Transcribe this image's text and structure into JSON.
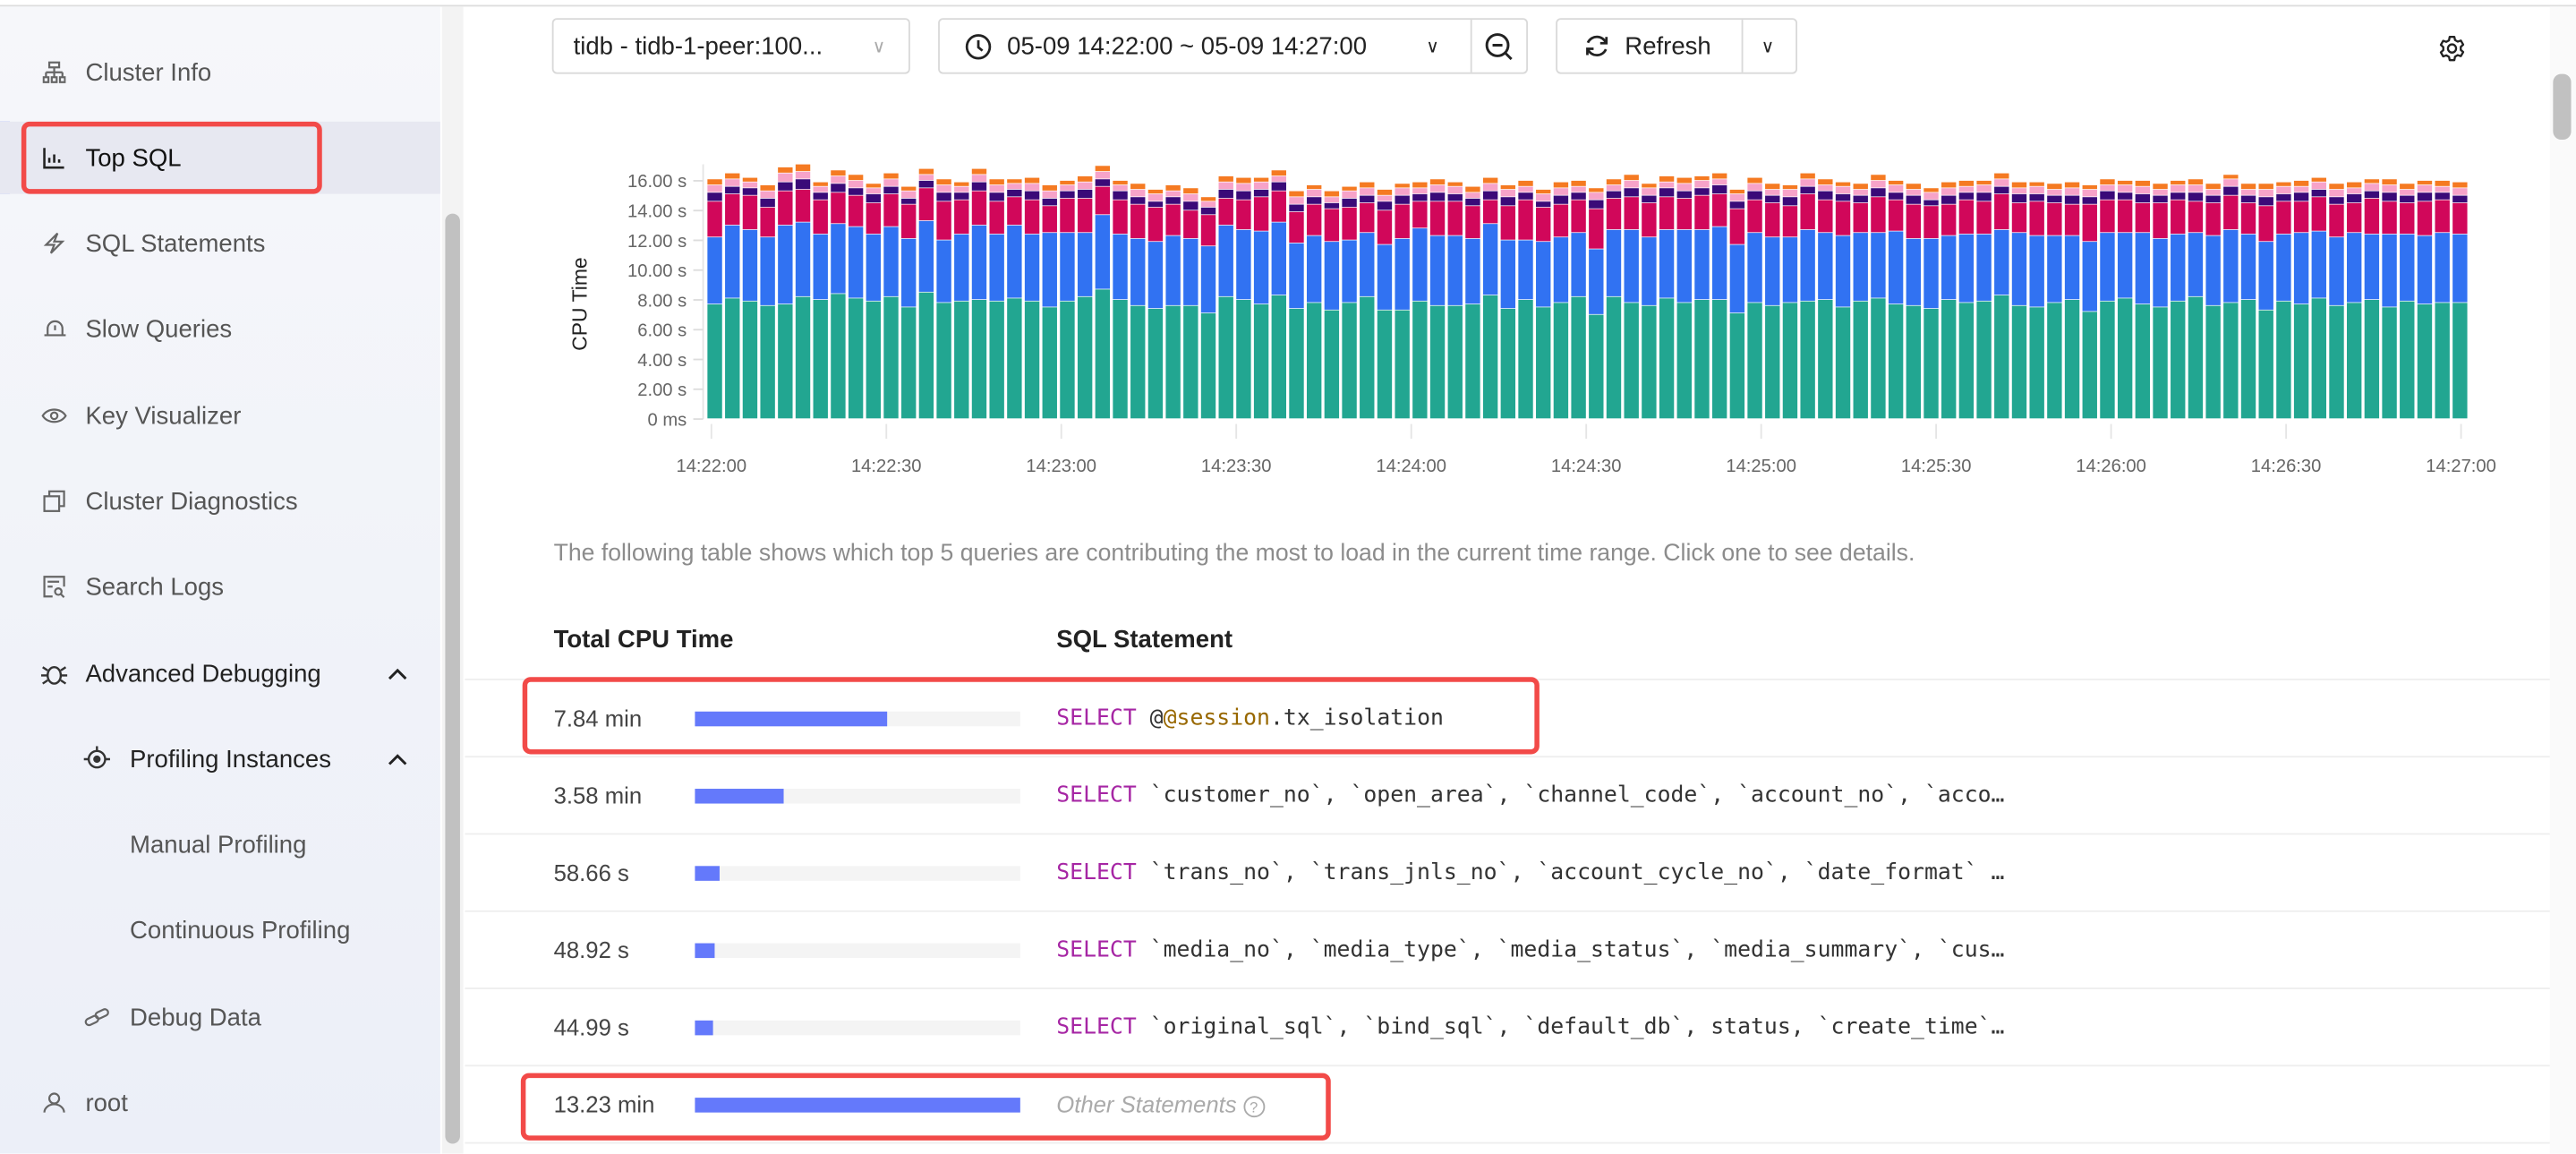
{
  "sidebar": {
    "items": [
      {
        "label": "Cluster Info",
        "icon": "cluster-icon"
      },
      {
        "label": "Top SQL",
        "icon": "bar-chart-icon",
        "active": true
      },
      {
        "label": "SQL Statements",
        "icon": "lightning-icon"
      },
      {
        "label": "Slow Queries",
        "icon": "alarm-icon"
      },
      {
        "label": "Key Visualizer",
        "icon": "eye-icon"
      },
      {
        "label": "Cluster Diagnostics",
        "icon": "diagnostics-icon"
      },
      {
        "label": "Search Logs",
        "icon": "search-logs-icon"
      },
      {
        "label": "Advanced Debugging",
        "icon": "bug-icon",
        "expanded": true
      },
      {
        "label": "Profiling Instances",
        "icon": "target-icon",
        "expanded": true
      },
      {
        "label": "Manual Profiling"
      },
      {
        "label": "Continuous Profiling"
      },
      {
        "label": "Debug Data",
        "icon": "link-icon"
      },
      {
        "label": "root",
        "icon": "user-icon"
      }
    ]
  },
  "toolbar": {
    "instance": "tidb - tidb-1-peer:100...",
    "time_range": "05-09 14:22:00 ~ 05-09 14:27:00",
    "refresh": "Refresh"
  },
  "chart_data": {
    "type": "bar",
    "stacked": true,
    "ylabel": "CPU Time",
    "ylim": [
      0,
      17.5
    ],
    "yticks": [
      "0 ms",
      "2.00 s",
      "4.00 s",
      "6.00 s",
      "8.00 s",
      "10.00 s",
      "12.00 s",
      "14.00 s",
      "16.00 s"
    ],
    "xticks": [
      "14:22:00",
      "14:22:30",
      "14:23:00",
      "14:23:30",
      "14:24:00",
      "14:24:30",
      "14:25:00",
      "14:25:30",
      "14:26:00",
      "14:26:30",
      "14:27:00"
    ],
    "grid": false,
    "series": [
      {
        "color": "#22a691",
        "values": [
          7.7,
          8.1,
          7.9,
          7.6,
          7.7,
          8.2,
          8.0,
          8.4,
          8.1,
          7.9,
          8.2,
          7.5,
          8.5,
          7.8,
          7.9,
          8.0,
          7.9,
          8.1,
          7.9,
          7.5,
          7.9,
          8.2,
          8.7,
          8.0,
          7.6,
          7.4,
          7.6,
          7.6,
          7.1,
          8.2,
          8.0,
          7.7,
          8.3,
          7.4,
          7.8,
          7.3,
          7.8,
          8.2,
          7.3,
          7.3,
          7.9,
          7.6,
          7.6,
          7.7,
          8.3,
          7.4,
          8.0,
          7.5,
          7.8,
          8.2,
          7.0,
          8.2,
          7.8,
          7.6,
          8.1,
          7.8,
          8.0,
          8.0,
          7.1,
          7.8,
          7.6,
          7.8,
          7.9,
          8.0,
          7.5,
          7.9,
          8.1,
          7.7,
          7.6,
          7.4,
          8.0,
          7.8,
          7.9,
          8.3,
          7.6,
          7.5,
          7.8,
          8.0,
          7.2,
          7.9,
          8.1,
          7.7,
          7.5,
          7.9,
          8.2,
          7.6,
          7.8,
          8.0,
          7.3,
          7.9,
          7.7,
          8.1,
          7.6,
          7.8,
          8.0,
          7.5,
          7.9,
          7.7,
          7.8,
          7.8
        ]
      },
      {
        "color": "#3172f2",
        "values": [
          4.5,
          4.9,
          4.8,
          4.6,
          5.3,
          5.0,
          4.4,
          4.7,
          4.8,
          4.5,
          4.7,
          4.6,
          4.8,
          4.2,
          4.5,
          5.0,
          4.5,
          4.9,
          4.5,
          5.0,
          4.6,
          4.3,
          5.0,
          4.4,
          4.5,
          4.5,
          4.7,
          4.5,
          4.5,
          4.8,
          4.7,
          4.9,
          4.9,
          4.4,
          4.5,
          4.6,
          4.2,
          4.3,
          4.4,
          4.8,
          4.9,
          4.7,
          4.7,
          4.4,
          4.8,
          4.6,
          4.0,
          4.4,
          4.4,
          4.3,
          4.4,
          4.5,
          4.9,
          4.6,
          4.6,
          4.9,
          4.7,
          4.9,
          4.6,
          4.7,
          4.6,
          4.4,
          4.8,
          4.5,
          4.8,
          4.6,
          4.4,
          4.9,
          4.5,
          4.7,
          4.3,
          4.6,
          4.5,
          4.4,
          4.9,
          4.8,
          4.5,
          4.3,
          4.7,
          4.6,
          4.4,
          4.8,
          4.6,
          4.5,
          4.3,
          4.7,
          4.9,
          4.4,
          4.6,
          4.5,
          4.8,
          4.5,
          4.6,
          4.7,
          4.4,
          4.9,
          4.5,
          4.6,
          4.7,
          4.6
        ]
      },
      {
        "color": "#d1075a",
        "values": [
          2.4,
          2.1,
          2.3,
          2.0,
          2.3,
          2.2,
          2.3,
          2.1,
          2.1,
          2.1,
          2.2,
          2.3,
          2.2,
          2.6,
          2.3,
          2.3,
          2.2,
          1.9,
          2.3,
          1.8,
          2.3,
          2.3,
          1.9,
          2.3,
          2.3,
          2.3,
          2.1,
          1.9,
          2.1,
          1.8,
          2.0,
          2.3,
          2.1,
          2.1,
          2.1,
          2.2,
          2.2,
          2.0,
          2.3,
          2.3,
          1.8,
          2.3,
          2.3,
          2.2,
          1.6,
          2.3,
          2.7,
          2.3,
          2.2,
          2.2,
          2.7,
          2.1,
          2.2,
          2.3,
          2.2,
          2.1,
          2.3,
          2.2,
          2.4,
          2.2,
          2.3,
          2.1,
          2.4,
          2.2,
          2.3,
          2.0,
          2.4,
          2.1,
          2.3,
          2.2,
          2.1,
          2.3,
          2.2,
          2.4,
          2.0,
          2.3,
          2.2,
          2.1,
          2.5,
          2.2,
          2.2,
          2.0,
          2.4,
          2.3,
          2.1,
          2.2,
          2.3,
          2.1,
          2.4,
          2.2,
          2.1,
          2.3,
          2.2,
          2.0,
          2.4,
          2.2,
          2.1,
          2.3,
          2.2,
          2.1
        ]
      },
      {
        "color": "#3a0a78",
        "values": [
          0.6,
          0.5,
          0.5,
          0.6,
          0.6,
          0.7,
          0.5,
          0.6,
          0.5,
          0.6,
          0.5,
          0.4,
          0.5,
          0.6,
          0.5,
          0.6,
          0.6,
          0.5,
          0.6,
          0.5,
          0.5,
          0.6,
          0.5,
          0.6,
          0.5,
          0.4,
          0.5,
          0.6,
          0.5,
          0.6,
          0.6,
          0.5,
          0.6,
          0.5,
          0.5,
          0.4,
          0.6,
          0.5,
          0.6,
          0.6,
          0.5,
          0.6,
          0.5,
          0.5,
          0.6,
          0.6,
          0.5,
          0.4,
          0.6,
          0.5,
          0.6,
          0.5,
          0.6,
          0.5,
          0.6,
          0.5,
          0.5,
          0.6,
          0.5,
          0.6,
          0.5,
          0.6,
          0.5,
          0.6,
          0.5,
          0.5,
          0.6,
          0.5,
          0.6,
          0.4,
          0.6,
          0.5,
          0.6,
          0.5,
          0.6,
          0.5,
          0.5,
          0.6,
          0.5,
          0.6,
          0.5,
          0.6,
          0.5,
          0.5,
          0.6,
          0.5,
          0.6,
          0.5,
          0.6,
          0.5,
          0.6,
          0.5,
          0.5,
          0.6,
          0.5,
          0.6,
          0.5,
          0.6,
          0.5,
          0.5
        ]
      },
      {
        "color": "#f7a3c9",
        "values": [
          0.5,
          0.5,
          0.4,
          0.5,
          0.6,
          0.5,
          0.4,
          0.5,
          0.5,
          0.4,
          0.5,
          0.5,
          0.4,
          0.5,
          0.4,
          0.5,
          0.5,
          0.4,
          0.5,
          0.5,
          0.4,
          0.5,
          0.5,
          0.4,
          0.5,
          0.5,
          0.4,
          0.5,
          0.4,
          0.5,
          0.5,
          0.5,
          0.4,
          0.5,
          0.5,
          0.4,
          0.5,
          0.5,
          0.4,
          0.5,
          0.4,
          0.5,
          0.5,
          0.4,
          0.5,
          0.5,
          0.4,
          0.5,
          0.5,
          0.4,
          0.5,
          0.4,
          0.5,
          0.5,
          0.4,
          0.5,
          0.5,
          0.4,
          0.5,
          0.5,
          0.4,
          0.5,
          0.5,
          0.4,
          0.5,
          0.4,
          0.5,
          0.5,
          0.4,
          0.5,
          0.5,
          0.4,
          0.5,
          0.5,
          0.4,
          0.5,
          0.4,
          0.5,
          0.5,
          0.4,
          0.5,
          0.5,
          0.4,
          0.5,
          0.5,
          0.4,
          0.5,
          0.4,
          0.5,
          0.5,
          0.4,
          0.5,
          0.5,
          0.4,
          0.5,
          0.5,
          0.4,
          0.5,
          0.4,
          0.5
        ]
      },
      {
        "color": "#f57a22",
        "values": [
          0.4,
          0.4,
          0.3,
          0.4,
          0.4,
          0.5,
          0.3,
          0.4,
          0.4,
          0.3,
          0.4,
          0.3,
          0.4,
          0.4,
          0.3,
          0.4,
          0.4,
          0.3,
          0.4,
          0.4,
          0.3,
          0.4,
          0.4,
          0.3,
          0.4,
          0.3,
          0.4,
          0.4,
          0.3,
          0.4,
          0.4,
          0.3,
          0.4,
          0.4,
          0.3,
          0.4,
          0.3,
          0.4,
          0.4,
          0.3,
          0.4,
          0.4,
          0.3,
          0.4,
          0.4,
          0.3,
          0.4,
          0.3,
          0.4,
          0.4,
          0.3,
          0.4,
          0.4,
          0.3,
          0.4,
          0.4,
          0.3,
          0.4,
          0.3,
          0.4,
          0.4,
          0.3,
          0.4,
          0.4,
          0.3,
          0.4,
          0.4,
          0.3,
          0.4,
          0.3,
          0.4,
          0.4,
          0.3,
          0.4,
          0.4,
          0.3,
          0.4,
          0.4,
          0.3,
          0.4,
          0.3,
          0.4,
          0.4,
          0.3,
          0.4,
          0.4,
          0.3,
          0.4,
          0.4,
          0.3,
          0.4,
          0.3,
          0.4,
          0.4,
          0.3,
          0.4,
          0.4,
          0.3,
          0.4,
          0.4
        ]
      }
    ]
  },
  "table": {
    "description": "The following table shows which top 5 queries are contributing the most to load in the current time range. Click one to see details.",
    "headers": [
      "Total CPU Time",
      "SQL Statement"
    ],
    "rows": [
      {
        "cpu": "7.84 min",
        "fraction": 0.593,
        "sql_kw": "SELECT",
        "sql_rest": " @",
        "sql_var": "@session",
        "sql_tail": ".tx_isolation"
      },
      {
        "cpu": "3.58 min",
        "fraction": 0.271,
        "sql_kw": "SELECT",
        "sql_rest": " `customer_no`, `open_area`, `channel_code`, `account_no`, `acco…"
      },
      {
        "cpu": "58.66 s",
        "fraction": 0.074,
        "sql_kw": "SELECT",
        "sql_rest": " `trans_no`, `trans_jnls_no`, `account_cycle_no`, `date_format` …"
      },
      {
        "cpu": "48.92 s",
        "fraction": 0.062,
        "sql_kw": "SELECT",
        "sql_rest": " `media_no`, `media_type`, `media_status`, `media_summary`, `cus…"
      },
      {
        "cpu": "44.99 s",
        "fraction": 0.057,
        "sql_kw": "SELECT",
        "sql_rest": " `original_sql`, `bind_sql`, `default_db`, status, `create_time`…"
      }
    ],
    "other": {
      "cpu": "13.23 min",
      "fraction": 1.0,
      "label": "Other Statements"
    }
  },
  "colors": {
    "accent": "#3d5af1",
    "bar": "#6479fb",
    "highlight": "#f24a48"
  }
}
